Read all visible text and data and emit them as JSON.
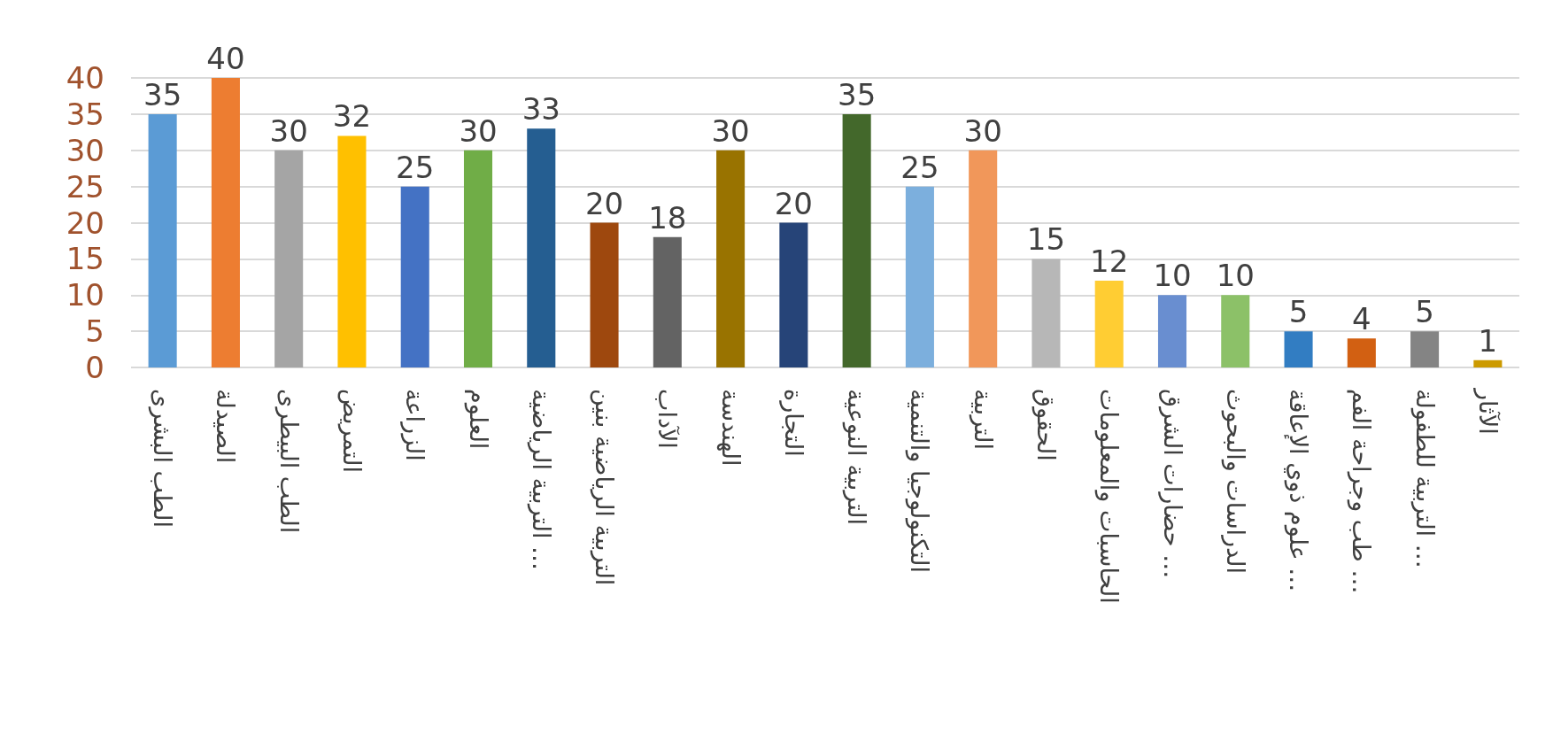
{
  "chart_data": {
    "type": "bar",
    "categories": [
      "الطب البشرى",
      "الصيدلة",
      "الطب البيطرى",
      "التمريض",
      "الزراعة",
      "العلوم",
      "التربية الرياضية …",
      "التربية الرياضية بنين",
      "الآداب",
      "الهندسة",
      "التجارة",
      "التربية النوعية",
      "التكنولوجيا والتنمية",
      "التربية",
      "الحقوق",
      "الحاسبات والمعلومات",
      "حضارات الشرق …",
      "الدراسات والبحوث",
      "علوم ذوي الإعاقة …",
      "طب وجراحة الفم …",
      "التربية للطفولة …",
      "الآثار"
    ],
    "values": [
      35,
      40,
      30,
      32,
      25,
      30,
      33,
      20,
      18,
      30,
      20,
      35,
      25,
      30,
      15,
      12,
      10,
      10,
      5,
      4,
      5,
      1
    ],
    "colors": [
      "#5b9bd5",
      "#ed7d31",
      "#a5a5a5",
      "#ffc000",
      "#4472c4",
      "#70ad47",
      "#255e91",
      "#9e480e",
      "#636363",
      "#997300",
      "#264478",
      "#43682b",
      "#7cafdd",
      "#f1975a",
      "#b7b7b7",
      "#ffcd33",
      "#698ed0",
      "#8cc168",
      "#327dc2",
      "#d26012",
      "#848484",
      "#cc9a00"
    ],
    "ylim": [
      0,
      40
    ],
    "yticks": [
      0,
      5,
      10,
      15,
      20,
      25,
      30,
      35,
      40
    ],
    "grid": "y",
    "data_labels": true
  }
}
